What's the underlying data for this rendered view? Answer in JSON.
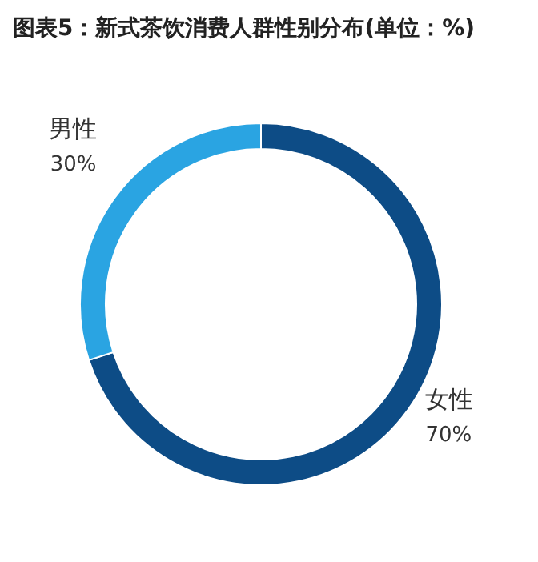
{
  "chart_data": {
    "type": "donut",
    "title": "图表5：新式茶饮消费人群性别分布(单位：%)",
    "categories": [
      "女性",
      "男性"
    ],
    "values": [
      70,
      30
    ],
    "value_labels": [
      "70%",
      "30%"
    ],
    "colors": [
      "#0d4c86",
      "#2aa4e2"
    ],
    "legend": false
  }
}
